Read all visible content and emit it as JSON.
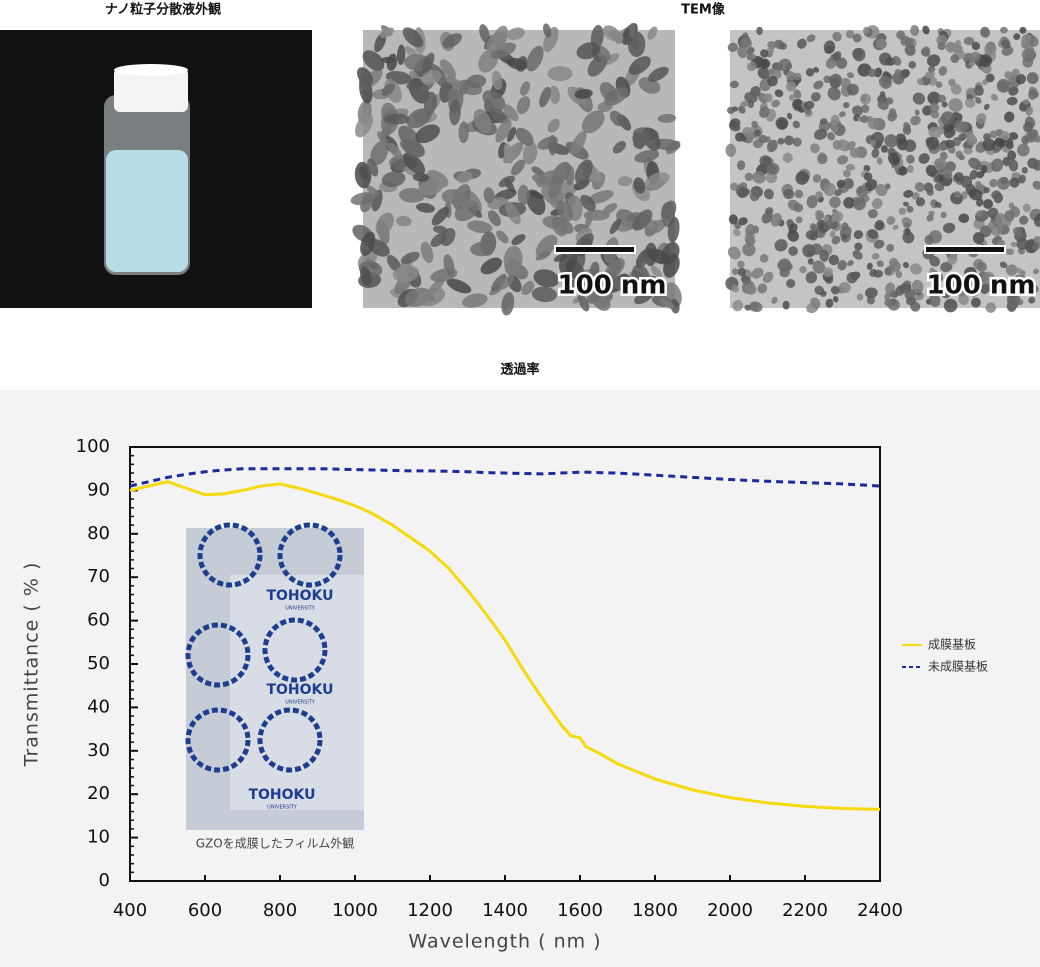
{
  "gallery": {
    "captions": [
      "ナノ粒子分散液外観",
      "TEM像"
    ],
    "scale_labels": [
      "100 nm",
      "100 nm"
    ]
  },
  "chart_data": {
    "type": "line",
    "title": "透過率",
    "xlabel": "Wavelength ( nm )",
    "ylabel": "Transmittance ( % )",
    "x": [
      400,
      450,
      500,
      550,
      600,
      650,
      700,
      750,
      800,
      850,
      900,
      950,
      1000,
      1050,
      1100,
      1150,
      1200,
      1250,
      1300,
      1350,
      1400,
      1450,
      1500,
      1550,
      1575,
      1600,
      1615,
      1650,
      1700,
      1800,
      1900,
      2000,
      2100,
      2200,
      2300,
      2400
    ],
    "series": [
      {
        "name": "成膜基板",
        "color": "#f5d90a",
        "dash": false,
        "values": [
          90,
          91,
          92,
          90.5,
          89,
          89.2,
          90,
          91,
          91.5,
          90.5,
          89.3,
          88,
          86.5,
          84.5,
          82,
          79,
          76,
          72,
          67,
          61.5,
          55.5,
          48.5,
          42,
          36,
          33.5,
          33,
          31,
          29.5,
          27,
          23.5,
          21,
          19.2,
          18,
          17.2,
          16.7,
          16.5
        ]
      },
      {
        "name": "未成膜基板",
        "color": "#1b2a9c",
        "dash": true,
        "values": [
          91,
          92,
          93,
          93.7,
          94.3,
          94.7,
          95,
          95,
          95,
          95,
          95,
          94.9,
          94.8,
          94.7,
          94.6,
          94.5,
          94.5,
          94.4,
          94.3,
          94.1,
          94,
          93.9,
          93.8,
          94,
          94.1,
          94.2,
          94.2,
          94.1,
          94,
          93.5,
          93,
          92.5,
          92.1,
          91.8,
          91.5,
          91
        ]
      }
    ],
    "xlim": [
      400,
      2400
    ],
    "xticks": [
      400,
      600,
      800,
      1000,
      1200,
      1400,
      1600,
      1800,
      2000,
      2200,
      2400
    ],
    "ylim": [
      0,
      100
    ],
    "yticks": [
      0,
      10,
      20,
      30,
      40,
      50,
      60,
      70,
      80,
      90,
      100
    ],
    "legend": "right",
    "inset": {
      "caption": "GZOを成膜したフィルム外観",
      "logo": "TOHOKU",
      "logo_sub": "UNIVERSITY"
    }
  }
}
